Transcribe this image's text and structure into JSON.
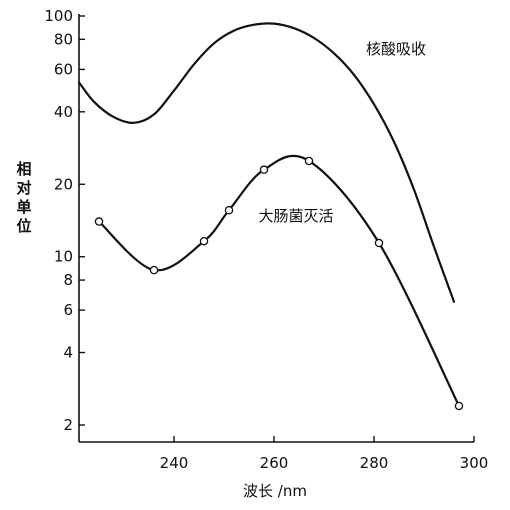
{
  "chart_data": {
    "type": "line",
    "xlabel": "波长 /nm",
    "ylabel": "相对单位",
    "xscale": "linear",
    "yscale": "log",
    "xlim": [
      221,
      300
    ],
    "ylim": [
      1.7,
      100
    ],
    "grid": false,
    "x_ticks": [
      240,
      260,
      280,
      300
    ],
    "y_ticks": [
      {
        "value": 2,
        "label": "2"
      },
      {
        "value": 4,
        "label": "4"
      },
      {
        "value": 6,
        "label": "6"
      },
      {
        "value": 8,
        "label": "8"
      },
      {
        "value": 10,
        "label": "10"
      },
      {
        "value": 20,
        "label": "20"
      },
      {
        "value": 40,
        "label": "40"
      },
      {
        "value": 60,
        "label": "60"
      },
      {
        "value": 80,
        "label": "80"
      },
      {
        "value": 100,
        "label": "100"
      }
    ],
    "series": [
      {
        "name": "核酸吸收",
        "markers": false,
        "x": [
          221,
          224,
          228,
          232,
          236,
          240,
          244,
          248,
          252,
          256,
          260,
          264,
          268,
          272,
          276,
          280,
          284,
          288,
          292,
          296
        ],
        "y": [
          53,
          44,
          38,
          36,
          39,
          49,
          63,
          77,
          87,
          92,
          93,
          89,
          81,
          70,
          57,
          43,
          30,
          19,
          11,
          6.5
        ]
      },
      {
        "name": "大肠菌灭活",
        "markers": true,
        "x": [
          225,
          236,
          246,
          251,
          258,
          267,
          281,
          297
        ],
        "y": [
          14,
          8.8,
          11.6,
          15.6,
          23,
          25,
          11.4,
          2.4
        ]
      }
    ]
  }
}
